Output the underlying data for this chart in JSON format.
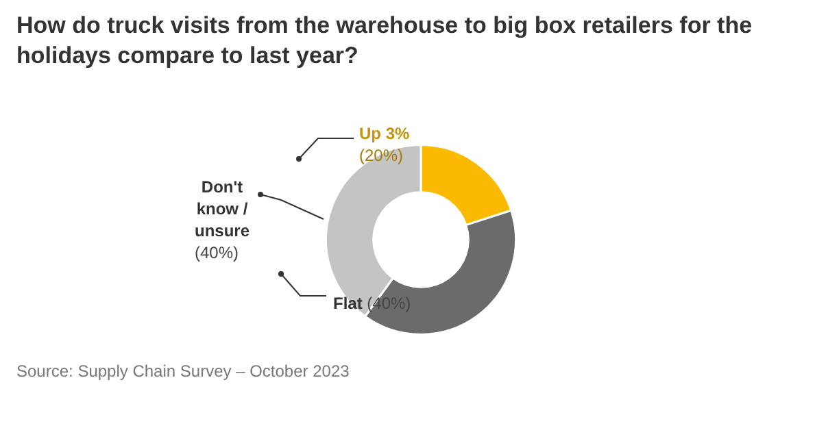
{
  "chart_data": {
    "type": "donut",
    "title": "How do truck visits from the warehouse to big box retailers for the holidays compare to last year?",
    "categories": [
      "Up 3%",
      "Flat",
      "Don't know / unsure"
    ],
    "values": [
      20,
      40,
      40
    ],
    "value_labels": [
      "(20%)",
      "(40%)",
      "(40%)"
    ],
    "colors": [
      "#fbb900",
      "#6b6b6b",
      "#c4c4c4"
    ],
    "legend": false,
    "annotations": [
      "Source: Supply Chain Survey – October 2023"
    ]
  }
}
